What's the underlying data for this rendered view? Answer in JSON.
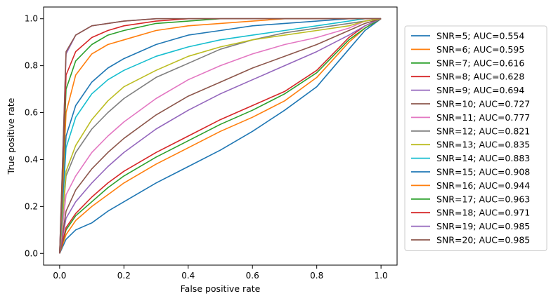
{
  "chart_data": {
    "type": "line",
    "title": "",
    "xlabel": "False positive rate",
    "ylabel": "True positive rate",
    "xlim": [
      -0.05,
      1.05
    ],
    "ylim": [
      -0.05,
      1.05
    ],
    "xticks": [
      0.0,
      0.2,
      0.4,
      0.6,
      0.8,
      1.0
    ],
    "yticks": [
      0.0,
      0.2,
      0.4,
      0.6,
      0.8,
      1.0
    ],
    "xtick_labels": [
      "0.0",
      "0.2",
      "0.4",
      "0.6",
      "0.8",
      "1.0"
    ],
    "ytick_labels": [
      "0.0",
      "0.2",
      "0.4",
      "0.6",
      "0.8",
      "1.0"
    ],
    "grid": false,
    "legend_position": "outside-right",
    "series": [
      {
        "name": "SNR=5; AUC=0.554",
        "color": "#1f77b4",
        "x": [
          0,
          0.02,
          0.05,
          0.1,
          0.15,
          0.2,
          0.3,
          0.4,
          0.5,
          0.6,
          0.7,
          0.8,
          0.9,
          0.95,
          1.0
        ],
        "y": [
          0,
          0.06,
          0.1,
          0.13,
          0.18,
          0.22,
          0.3,
          0.37,
          0.44,
          0.52,
          0.61,
          0.71,
          0.87,
          0.95,
          1.0
        ]
      },
      {
        "name": "SNR=6; AUC=0.595",
        "color": "#ff7f0e",
        "x": [
          0,
          0.02,
          0.05,
          0.1,
          0.15,
          0.2,
          0.3,
          0.4,
          0.5,
          0.6,
          0.7,
          0.8,
          0.9,
          0.95,
          1.0
        ],
        "y": [
          0,
          0.08,
          0.14,
          0.2,
          0.25,
          0.3,
          0.38,
          0.45,
          0.52,
          0.58,
          0.65,
          0.75,
          0.9,
          0.96,
          1.0
        ]
      },
      {
        "name": "SNR=7; AUC=0.616",
        "color": "#2ca02c",
        "x": [
          0,
          0.02,
          0.05,
          0.1,
          0.15,
          0.2,
          0.3,
          0.4,
          0.5,
          0.6,
          0.7,
          0.8,
          0.9,
          0.95,
          1.0
        ],
        "y": [
          0,
          0.1,
          0.16,
          0.22,
          0.28,
          0.33,
          0.41,
          0.48,
          0.55,
          0.61,
          0.68,
          0.77,
          0.91,
          0.96,
          1.0
        ]
      },
      {
        "name": "SNR=8; AUC=0.628",
        "color": "#d62728",
        "x": [
          0,
          0.02,
          0.05,
          0.1,
          0.15,
          0.2,
          0.3,
          0.4,
          0.5,
          0.6,
          0.7,
          0.8,
          0.9,
          0.95,
          1.0
        ],
        "y": [
          0,
          0.11,
          0.17,
          0.24,
          0.3,
          0.35,
          0.43,
          0.5,
          0.57,
          0.63,
          0.69,
          0.78,
          0.92,
          0.97,
          1.0
        ]
      },
      {
        "name": "SNR=9; AUC=0.694",
        "color": "#9467bd",
        "x": [
          0,
          0.02,
          0.05,
          0.1,
          0.15,
          0.2,
          0.3,
          0.4,
          0.5,
          0.6,
          0.7,
          0.8,
          0.9,
          0.95,
          1.0
        ],
        "y": [
          0,
          0.15,
          0.22,
          0.3,
          0.37,
          0.43,
          0.53,
          0.61,
          0.68,
          0.74,
          0.8,
          0.86,
          0.93,
          0.97,
          1.0
        ]
      },
      {
        "name": "SNR=10; AUC=0.727",
        "color": "#8c564b",
        "x": [
          0,
          0.02,
          0.05,
          0.1,
          0.15,
          0.2,
          0.3,
          0.4,
          0.5,
          0.6,
          0.7,
          0.8,
          0.9,
          0.95,
          1.0
        ],
        "y": [
          0,
          0.18,
          0.27,
          0.36,
          0.43,
          0.49,
          0.59,
          0.67,
          0.73,
          0.79,
          0.84,
          0.89,
          0.95,
          0.98,
          1.0
        ]
      },
      {
        "name": "SNR=11; AUC=0.777",
        "color": "#e377c2",
        "x": [
          0,
          0.02,
          0.05,
          0.1,
          0.15,
          0.2,
          0.3,
          0.4,
          0.5,
          0.6,
          0.7,
          0.8,
          0.9,
          0.95,
          1.0
        ],
        "y": [
          0,
          0.25,
          0.33,
          0.43,
          0.5,
          0.56,
          0.66,
          0.74,
          0.8,
          0.85,
          0.89,
          0.92,
          0.96,
          0.99,
          1.0
        ]
      },
      {
        "name": "SNR=12; AUC=0.821",
        "color": "#7f7f7f",
        "x": [
          0,
          0.02,
          0.05,
          0.1,
          0.15,
          0.2,
          0.3,
          0.4,
          0.5,
          0.6,
          0.7,
          0.8,
          0.9,
          0.95,
          1.0
        ],
        "y": [
          0,
          0.33,
          0.43,
          0.53,
          0.6,
          0.66,
          0.75,
          0.81,
          0.87,
          0.91,
          0.94,
          0.96,
          0.98,
          0.99,
          1.0
        ]
      },
      {
        "name": "SNR=13; AUC=0.835",
        "color": "#bcbd22",
        "x": [
          0,
          0.02,
          0.05,
          0.1,
          0.15,
          0.2,
          0.3,
          0.4,
          0.5,
          0.6,
          0.7,
          0.8,
          0.9,
          0.95,
          1.0
        ],
        "y": [
          0,
          0.35,
          0.46,
          0.57,
          0.65,
          0.71,
          0.78,
          0.84,
          0.88,
          0.91,
          0.93,
          0.95,
          0.97,
          0.99,
          1.0
        ]
      },
      {
        "name": "SNR=14; AUC=0.883",
        "color": "#17becf",
        "x": [
          0,
          0.02,
          0.05,
          0.1,
          0.15,
          0.2,
          0.3,
          0.4,
          0.5,
          0.6,
          0.7,
          0.8,
          0.9,
          0.95,
          1.0
        ],
        "y": [
          0,
          0.45,
          0.58,
          0.68,
          0.74,
          0.78,
          0.84,
          0.88,
          0.91,
          0.93,
          0.95,
          0.97,
          0.99,
          1.0,
          1.0
        ]
      },
      {
        "name": "SNR=15; AUC=0.908",
        "color": "#1f77b4",
        "x": [
          0,
          0.02,
          0.05,
          0.1,
          0.15,
          0.2,
          0.3,
          0.4,
          0.5,
          0.6,
          0.7,
          0.8,
          0.9,
          0.95,
          1.0
        ],
        "y": [
          0,
          0.5,
          0.63,
          0.73,
          0.79,
          0.83,
          0.89,
          0.93,
          0.95,
          0.97,
          0.98,
          0.99,
          1.0,
          1.0,
          1.0
        ]
      },
      {
        "name": "SNR=16; AUC=0.944",
        "color": "#ff7f0e",
        "x": [
          0,
          0.02,
          0.05,
          0.1,
          0.15,
          0.2,
          0.3,
          0.4,
          0.5,
          0.6,
          0.7,
          0.8,
          0.9,
          0.95,
          1.0
        ],
        "y": [
          0,
          0.6,
          0.76,
          0.85,
          0.89,
          0.91,
          0.95,
          0.97,
          0.98,
          0.99,
          1.0,
          1.0,
          1.0,
          1.0,
          1.0
        ]
      },
      {
        "name": "SNR=17; AUC=0.963",
        "color": "#2ca02c",
        "x": [
          0,
          0.02,
          0.05,
          0.1,
          0.15,
          0.2,
          0.3,
          0.4,
          0.5,
          0.6,
          0.7,
          0.8,
          0.9,
          0.95,
          1.0
        ],
        "y": [
          0,
          0.7,
          0.82,
          0.89,
          0.93,
          0.95,
          0.98,
          0.99,
          1.0,
          1.0,
          1.0,
          1.0,
          1.0,
          1.0,
          1.0
        ]
      },
      {
        "name": "SNR=18; AUC=0.971",
        "color": "#d62728",
        "x": [
          0,
          0.02,
          0.05,
          0.1,
          0.15,
          0.2,
          0.3,
          0.4,
          0.5,
          0.6,
          0.7,
          0.8,
          0.9,
          0.95,
          1.0
        ],
        "y": [
          0,
          0.76,
          0.86,
          0.92,
          0.95,
          0.97,
          0.99,
          1.0,
          1.0,
          1.0,
          1.0,
          1.0,
          1.0,
          1.0,
          1.0
        ]
      },
      {
        "name": "SNR=19; AUC=0.985",
        "color": "#9467bd",
        "x": [
          0,
          0.02,
          0.05,
          0.1,
          0.15,
          0.2,
          0.3,
          0.4,
          0.5,
          0.6,
          0.7,
          0.8,
          0.9,
          0.95,
          1.0
        ],
        "y": [
          0,
          0.85,
          0.93,
          0.97,
          0.98,
          0.99,
          1.0,
          1.0,
          1.0,
          1.0,
          1.0,
          1.0,
          1.0,
          1.0,
          1.0
        ]
      },
      {
        "name": "SNR=20; AUC=0.985",
        "color": "#8c564b",
        "x": [
          0,
          0.02,
          0.05,
          0.1,
          0.15,
          0.2,
          0.3,
          0.4,
          0.5,
          0.6,
          0.7,
          0.8,
          0.9,
          0.95,
          1.0
        ],
        "y": [
          0,
          0.86,
          0.93,
          0.97,
          0.98,
          0.99,
          1.0,
          1.0,
          1.0,
          1.0,
          1.0,
          1.0,
          1.0,
          1.0,
          1.0
        ]
      }
    ]
  }
}
